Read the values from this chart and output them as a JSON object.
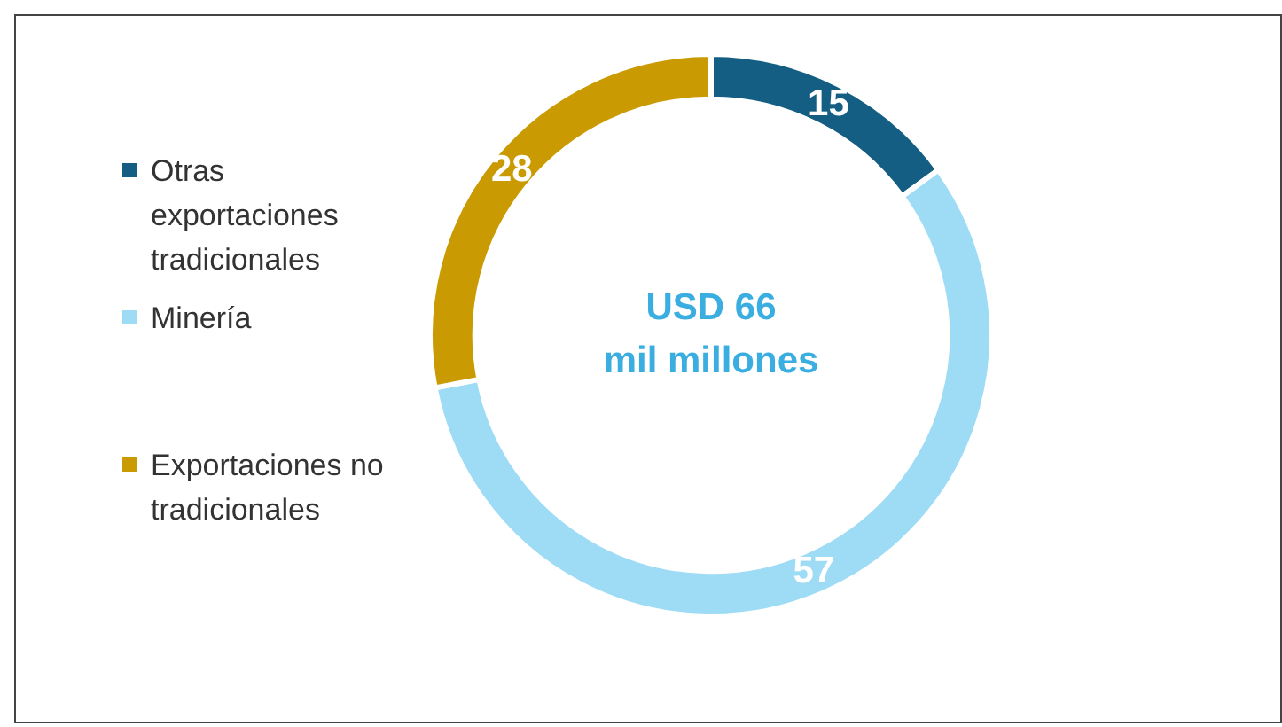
{
  "chart_data": {
    "type": "donut",
    "categories": [
      "Otras exportaciones tradicionales",
      "Minería",
      "Exportaciones no tradicionales"
    ],
    "values": [
      15,
      57,
      28
    ],
    "colors": [
      "#135e82",
      "#9edcf6",
      "#c99a02"
    ],
    "data_labels": true,
    "legend": "left",
    "annotations": [
      "USD 66",
      "mil millones"
    ]
  }
}
